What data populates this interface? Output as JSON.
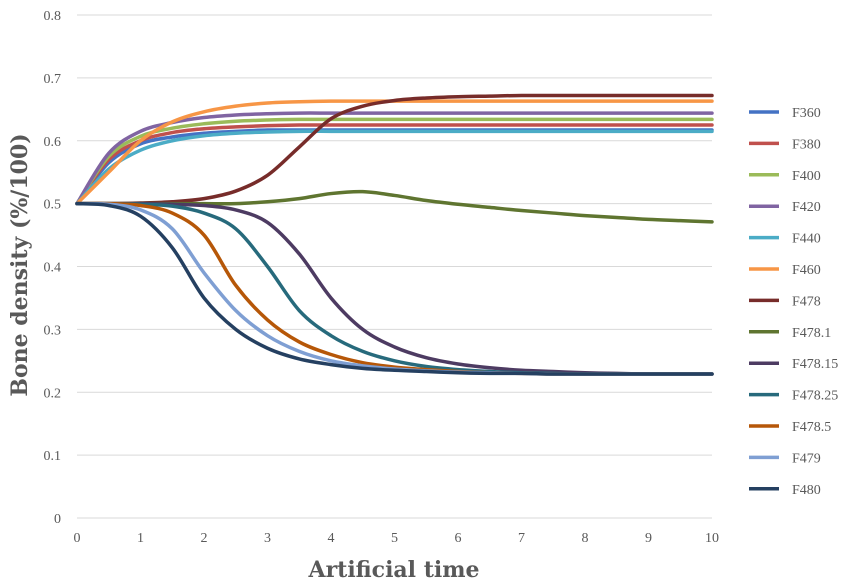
{
  "chart_data": {
    "type": "line",
    "title": "",
    "xlabel": "Artificial time",
    "ylabel": "Bone density (%/100)",
    "xlim": [
      0,
      10
    ],
    "ylim": [
      0,
      0.8
    ],
    "x_ticks": [
      "0",
      "1",
      "2",
      "3",
      "4",
      "5",
      "6",
      "7",
      "8",
      "9",
      "10"
    ],
    "y_ticks": [
      "0",
      "0.1",
      "0.2",
      "0.3",
      "0.4",
      "0.5",
      "0.6",
      "0.7",
      "0.8"
    ],
    "grid": "horizontal",
    "legend_position": "right",
    "x": [
      0,
      0.5,
      1,
      1.5,
      2,
      2.5,
      3,
      3.5,
      4,
      4.5,
      5,
      5.5,
      6,
      6.5,
      7,
      7.5,
      8,
      8.5,
      9,
      9.5,
      10
    ],
    "series": [
      {
        "name": "F360",
        "color": "#4472c4",
        "values": [
          0.5,
          0.565,
          0.595,
          0.606,
          0.612,
          0.615,
          0.617,
          0.617,
          0.617,
          0.617,
          0.617,
          0.617,
          0.617,
          0.617,
          0.617,
          0.617,
          0.617,
          0.617,
          0.617,
          0.617,
          0.617
        ]
      },
      {
        "name": "F380",
        "color": "#c0504d",
        "values": [
          0.5,
          0.57,
          0.6,
          0.613,
          0.619,
          0.622,
          0.624,
          0.625,
          0.625,
          0.625,
          0.625,
          0.625,
          0.625,
          0.625,
          0.625,
          0.625,
          0.625,
          0.625,
          0.625,
          0.625,
          0.625
        ]
      },
      {
        "name": "F400",
        "color": "#9bbb59",
        "values": [
          0.5,
          0.575,
          0.607,
          0.62,
          0.627,
          0.631,
          0.633,
          0.634,
          0.634,
          0.634,
          0.634,
          0.634,
          0.634,
          0.634,
          0.634,
          0.634,
          0.634,
          0.634,
          0.634,
          0.634,
          0.634
        ]
      },
      {
        "name": "F420",
        "color": "#8064a2",
        "values": [
          0.5,
          0.58,
          0.615,
          0.629,
          0.637,
          0.641,
          0.643,
          0.644,
          0.644,
          0.644,
          0.644,
          0.644,
          0.644,
          0.644,
          0.644,
          0.644,
          0.644,
          0.644,
          0.644,
          0.644,
          0.644
        ]
      },
      {
        "name": "F440",
        "color": "#4bacc6",
        "values": [
          0.5,
          0.555,
          0.585,
          0.6,
          0.608,
          0.612,
          0.614,
          0.615,
          0.615,
          0.615,
          0.615,
          0.615,
          0.615,
          0.615,
          0.615,
          0.615,
          0.615,
          0.615,
          0.615,
          0.615,
          0.615
        ]
      },
      {
        "name": "F460",
        "color": "#f79646",
        "values": [
          0.5,
          0.55,
          0.6,
          0.63,
          0.646,
          0.655,
          0.66,
          0.662,
          0.663,
          0.663,
          0.663,
          0.663,
          0.663,
          0.663,
          0.663,
          0.663,
          0.663,
          0.663,
          0.663,
          0.663,
          0.663
        ]
      },
      {
        "name": "F478",
        "color": "#772c2a",
        "values": [
          0.5,
          0.5,
          0.501,
          0.503,
          0.508,
          0.52,
          0.545,
          0.59,
          0.635,
          0.655,
          0.664,
          0.668,
          0.67,
          0.671,
          0.672,
          0.672,
          0.672,
          0.672,
          0.672,
          0.672,
          0.672
        ]
      },
      {
        "name": "F478.1",
        "color": "#5f7530",
        "values": [
          0.5,
          0.5,
          0.5,
          0.5,
          0.5,
          0.5,
          0.503,
          0.508,
          0.516,
          0.519,
          0.513,
          0.505,
          0.499,
          0.494,
          0.489,
          0.485,
          0.481,
          0.478,
          0.475,
          0.473,
          0.471
        ]
      },
      {
        "name": "F478.15",
        "color": "#4d3b62",
        "values": [
          0.5,
          0.5,
          0.5,
          0.499,
          0.497,
          0.49,
          0.47,
          0.42,
          0.35,
          0.3,
          0.272,
          0.255,
          0.245,
          0.239,
          0.235,
          0.233,
          0.231,
          0.23,
          0.229,
          0.229,
          0.229
        ]
      },
      {
        "name": "F478.25",
        "color": "#276a7c",
        "values": [
          0.5,
          0.5,
          0.499,
          0.496,
          0.485,
          0.46,
          0.4,
          0.33,
          0.29,
          0.265,
          0.25,
          0.241,
          0.236,
          0.233,
          0.231,
          0.23,
          0.229,
          0.229,
          0.229,
          0.229,
          0.229
        ]
      },
      {
        "name": "F478.5",
        "color": "#b65708",
        "values": [
          0.5,
          0.5,
          0.497,
          0.485,
          0.45,
          0.37,
          0.315,
          0.28,
          0.26,
          0.247,
          0.24,
          0.236,
          0.233,
          0.231,
          0.23,
          0.229,
          0.229,
          0.229,
          0.229,
          0.229,
          0.229
        ]
      },
      {
        "name": "F479",
        "color": "#7f9fd3",
        "values": [
          0.5,
          0.499,
          0.49,
          0.46,
          0.39,
          0.33,
          0.29,
          0.265,
          0.25,
          0.242,
          0.237,
          0.234,
          0.232,
          0.231,
          0.23,
          0.229,
          0.229,
          0.229,
          0.229,
          0.229,
          0.229
        ]
      },
      {
        "name": "F480",
        "color": "#254061",
        "values": [
          0.5,
          0.497,
          0.48,
          0.43,
          0.35,
          0.3,
          0.27,
          0.253,
          0.244,
          0.238,
          0.235,
          0.233,
          0.231,
          0.23,
          0.23,
          0.229,
          0.229,
          0.229,
          0.229,
          0.229,
          0.229
        ]
      }
    ]
  }
}
